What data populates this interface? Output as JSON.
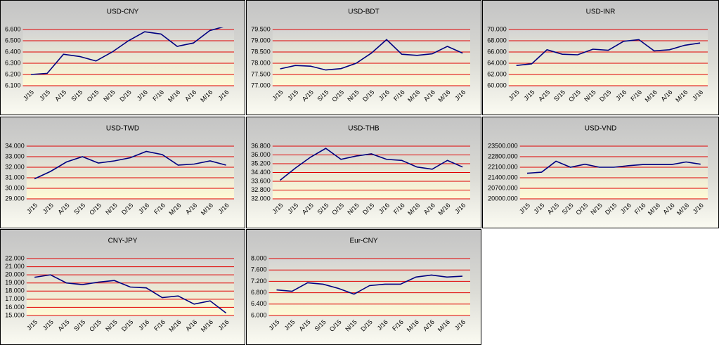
{
  "chart_data": [
    {
      "type": "line",
      "title": "USD-CNY",
      "color": "#000080",
      "categories": [
        "J/15",
        "J/15",
        "A/15",
        "S/15",
        "O/15",
        "N/15",
        "D/15",
        "J/16",
        "F/16",
        "M/16",
        "A/16",
        "M/16",
        "J/16"
      ],
      "values": [
        6.2,
        6.21,
        6.38,
        6.36,
        6.32,
        6.4,
        6.5,
        6.58,
        6.56,
        6.45,
        6.48,
        6.59,
        6.63
      ],
      "ylim": [
        6.1,
        6.6
      ],
      "yticks": [
        {
          "value": 6.1,
          "label": "6.100"
        },
        {
          "value": 6.2,
          "label": "6.200"
        },
        {
          "value": 6.3,
          "label": "6.300"
        },
        {
          "value": 6.4,
          "label": "6.400"
        },
        {
          "value": 6.5,
          "label": "6.500"
        },
        {
          "value": 6.6,
          "label": "6.600"
        }
      ],
      "grid": true
    },
    {
      "type": "line",
      "title": "USD-BDT",
      "color": "#000080",
      "categories": [
        "J/15",
        "J/15",
        "A/15",
        "S/15",
        "O/15",
        "N/15",
        "D/15",
        "J/16",
        "F/16",
        "M/16",
        "A/16",
        "M/16",
        "J/16"
      ],
      "values": [
        77.75,
        77.9,
        77.87,
        77.7,
        77.76,
        78.0,
        78.45,
        79.05,
        78.4,
        78.35,
        78.42,
        78.75,
        78.45
      ],
      "ylim": [
        77.0,
        79.5
      ],
      "yticks": [
        {
          "value": 77.0,
          "label": "77.000"
        },
        {
          "value": 77.5,
          "label": "77.500"
        },
        {
          "value": 78.0,
          "label": "78.000"
        },
        {
          "value": 78.5,
          "label": "78.500"
        },
        {
          "value": 79.0,
          "label": "79.000"
        },
        {
          "value": 79.5,
          "label": "79.500"
        }
      ],
      "grid": true
    },
    {
      "type": "line",
      "title": "USD-INR",
      "color": "#000080",
      "categories": [
        "J/15",
        "J/15",
        "A/15",
        "S/15",
        "O/15",
        "N/15",
        "D/15",
        "J/16",
        "F/16",
        "M/16",
        "A/16",
        "M/16",
        "J/16"
      ],
      "values": [
        63.6,
        63.9,
        66.4,
        65.6,
        65.5,
        66.5,
        66.3,
        67.9,
        68.2,
        66.2,
        66.4,
        67.2,
        67.6
      ],
      "ylim": [
        60,
        70
      ],
      "yticks": [
        {
          "value": 60,
          "label": "60.000"
        },
        {
          "value": 62,
          "label": "62.000"
        },
        {
          "value": 64,
          "label": "64.000"
        },
        {
          "value": 66,
          "label": "66.000"
        },
        {
          "value": 68,
          "label": "68.000"
        },
        {
          "value": 70,
          "label": "70.000"
        }
      ],
      "grid": true
    },
    {
      "type": "line",
      "title": "USD-TWD",
      "color": "#000080",
      "categories": [
        "J/15",
        "J/15",
        "A/15",
        "S/15",
        "O/15",
        "N/15",
        "D/15",
        "J/16",
        "F/16",
        "M/16",
        "A/16",
        "M/16",
        "J/16"
      ],
      "values": [
        30.9,
        31.6,
        32.5,
        33.0,
        32.4,
        32.6,
        32.9,
        33.5,
        33.2,
        32.2,
        32.3,
        32.6,
        32.2
      ],
      "ylim": [
        29,
        34
      ],
      "yticks": [
        {
          "value": 29,
          "label": "29.000"
        },
        {
          "value": 30,
          "label": "30.000"
        },
        {
          "value": 31,
          "label": "31.000"
        },
        {
          "value": 32,
          "label": "32.000"
        },
        {
          "value": 33,
          "label": "33.000"
        },
        {
          "value": 34,
          "label": "34.000"
        }
      ],
      "grid": true
    },
    {
      "type": "line",
      "title": "USD-THB",
      "color": "#000080",
      "categories": [
        "J/15",
        "J/15",
        "A/15",
        "S/15",
        "O/15",
        "N/15",
        "D/15",
        "J/16",
        "F/16",
        "M/16",
        "A/16",
        "M/16",
        "J/16"
      ],
      "values": [
        33.7,
        34.8,
        35.8,
        36.6,
        35.6,
        35.9,
        36.1,
        35.6,
        35.5,
        34.9,
        34.7,
        35.5,
        34.9
      ],
      "ylim": [
        32.0,
        36.8
      ],
      "yticks": [
        {
          "value": 32.0,
          "label": "32.000"
        },
        {
          "value": 32.8,
          "label": "32.800"
        },
        {
          "value": 33.6,
          "label": "33.600"
        },
        {
          "value": 34.4,
          "label": "34.400"
        },
        {
          "value": 35.2,
          "label": "35.200"
        },
        {
          "value": 36.0,
          "label": "36.000"
        },
        {
          "value": 36.8,
          "label": "36.800"
        }
      ],
      "grid": true
    },
    {
      "type": "line",
      "title": "USD-VND",
      "color": "#000080",
      "categories": [
        "J/15",
        "J/15",
        "A/15",
        "S/15",
        "O/15",
        "N/15",
        "D/15",
        "J/16",
        "F/16",
        "M/16",
        "A/16",
        "M/16",
        "J/16"
      ],
      "values": [
        21700,
        21770,
        22500,
        22100,
        22300,
        22100,
        22100,
        22200,
        22280,
        22280,
        22280,
        22450,
        22300
      ],
      "ylim": [
        20000,
        23500
      ],
      "yticks": [
        {
          "value": 20000,
          "label": "20000.000"
        },
        {
          "value": 20700,
          "label": "20700.000"
        },
        {
          "value": 21400,
          "label": "21400.000"
        },
        {
          "value": 22100,
          "label": "22100.000"
        },
        {
          "value": 22800,
          "label": "22800.000"
        },
        {
          "value": 23500,
          "label": "23500.000"
        }
      ],
      "grid": true
    },
    {
      "type": "line",
      "title": "CNY-JPY",
      "color": "#000080",
      "categories": [
        "J/15",
        "J/15",
        "A/15",
        "S/15",
        "O/15",
        "N/15",
        "D/15",
        "J/16",
        "F/16",
        "M/16",
        "A/16",
        "M/16",
        "J/16"
      ],
      "values": [
        19.7,
        20.0,
        19.0,
        18.8,
        19.1,
        19.3,
        18.5,
        18.4,
        17.2,
        17.4,
        16.4,
        16.8,
        15.3
      ],
      "ylim": [
        15,
        22
      ],
      "yticks": [
        {
          "value": 15,
          "label": "15.000"
        },
        {
          "value": 16,
          "label": "16.000"
        },
        {
          "value": 17,
          "label": "17.000"
        },
        {
          "value": 18,
          "label": "18.000"
        },
        {
          "value": 19,
          "label": "19.000"
        },
        {
          "value": 20,
          "label": "20.000"
        },
        {
          "value": 21,
          "label": "21.000"
        },
        {
          "value": 22,
          "label": "22.000"
        }
      ],
      "grid": true
    },
    {
      "type": "line",
      "title": "Eur-CNY",
      "color": "#000080",
      "categories": [
        "J/15",
        "J/15",
        "A/15",
        "S/15",
        "O/15",
        "N/15",
        "D/15",
        "J/16",
        "F/16",
        "M/16",
        "A/16",
        "M/16",
        "J/16"
      ],
      "values": [
        6.9,
        6.85,
        7.15,
        7.1,
        6.95,
        6.75,
        7.05,
        7.1,
        7.1,
        7.35,
        7.42,
        7.35,
        7.38
      ],
      "ylim": [
        6.0,
        8.0
      ],
      "yticks": [
        {
          "value": 6.0,
          "label": "6.000"
        },
        {
          "value": 6.4,
          "label": "6.400"
        },
        {
          "value": 6.8,
          "label": "6.800"
        },
        {
          "value": 7.2,
          "label": "7.200"
        },
        {
          "value": 7.6,
          "label": "7.600"
        },
        {
          "value": 8.0,
          "label": "8.000"
        }
      ],
      "grid": true
    }
  ]
}
